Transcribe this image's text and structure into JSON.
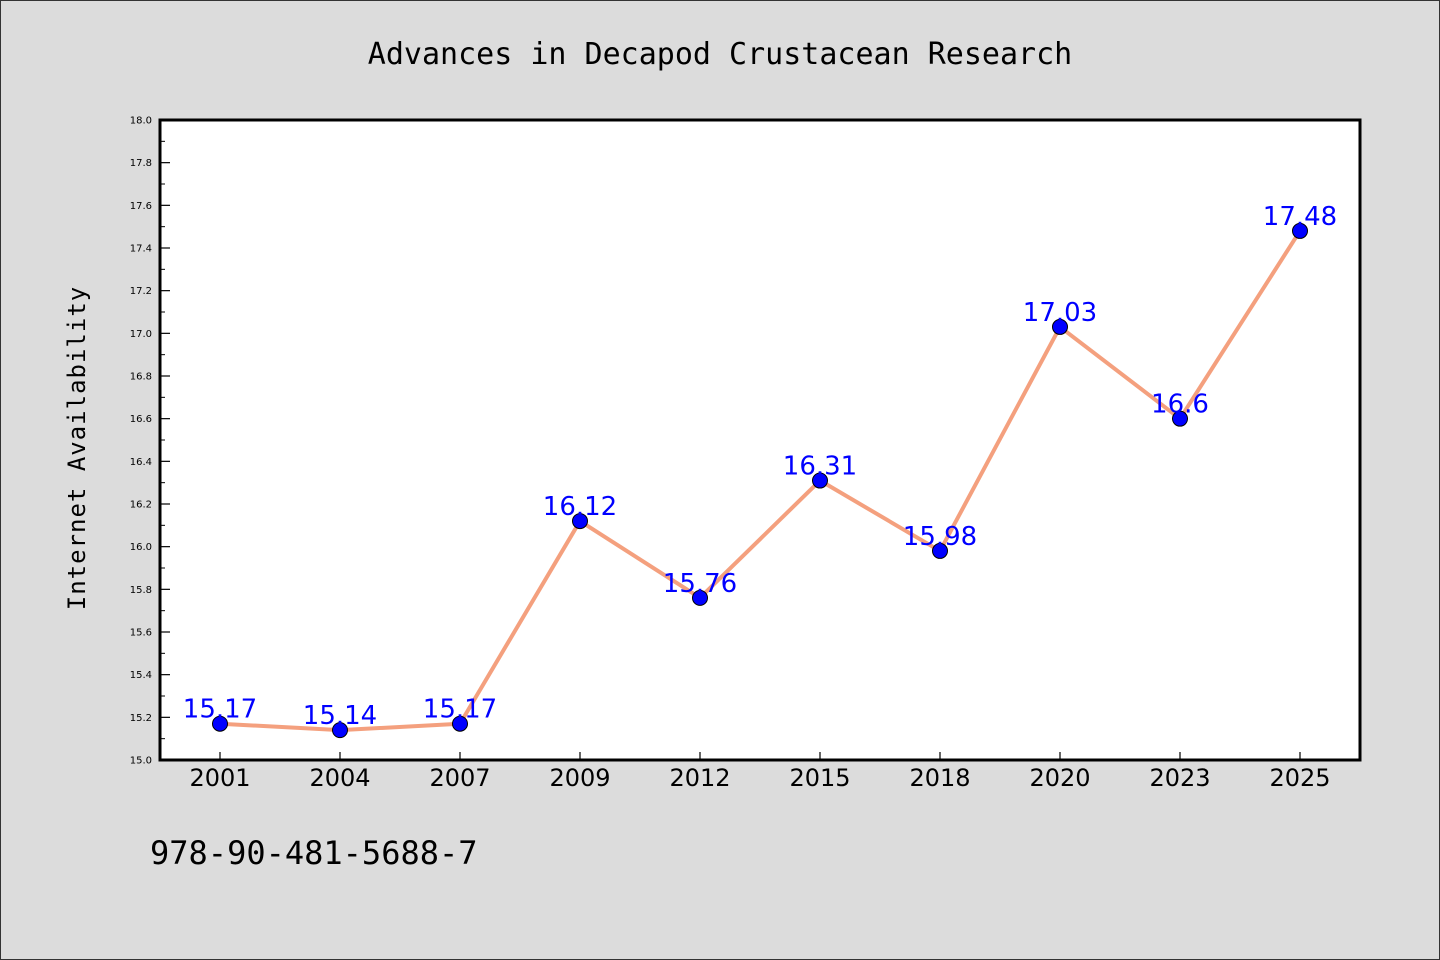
{
  "chart_data": {
    "type": "line",
    "title": "Advances in Decapod Crustacean Research",
    "xlabel": "",
    "ylabel": "Internet Availability",
    "categories": [
      "2001",
      "2004",
      "2007",
      "2009",
      "2012",
      "2015",
      "2018",
      "2020",
      "2023",
      "2025"
    ],
    "series": [
      {
        "values": [
          15.17,
          15.14,
          15.17,
          16.12,
          15.76,
          16.31,
          15.98,
          17.03,
          16.6,
          17.48
        ],
        "labels": [
          "15.17",
          "15.14",
          "15.17",
          "16.12",
          "15.76",
          "16.31",
          "15.98",
          "17.03",
          "16.6",
          "17.48"
        ],
        "line_color": "#f4a07e",
        "marker_color": "#0000ff"
      }
    ],
    "ylim": [
      15.0,
      18.0
    ],
    "yticks": [
      "15.0",
      "15.2",
      "15.4",
      "15.6",
      "15.8",
      "16.0",
      "16.2",
      "16.4",
      "16.6",
      "16.8",
      "17.0",
      "17.2",
      "17.4",
      "17.6",
      "17.8",
      "18.0"
    ],
    "grid": false,
    "legend": "none"
  },
  "footer": {
    "isbn": "978-90-481-5688-7"
  },
  "colors": {
    "background": "#dcdcdc",
    "plot_area": "#ffffff",
    "data_label": "#0000ff"
  }
}
